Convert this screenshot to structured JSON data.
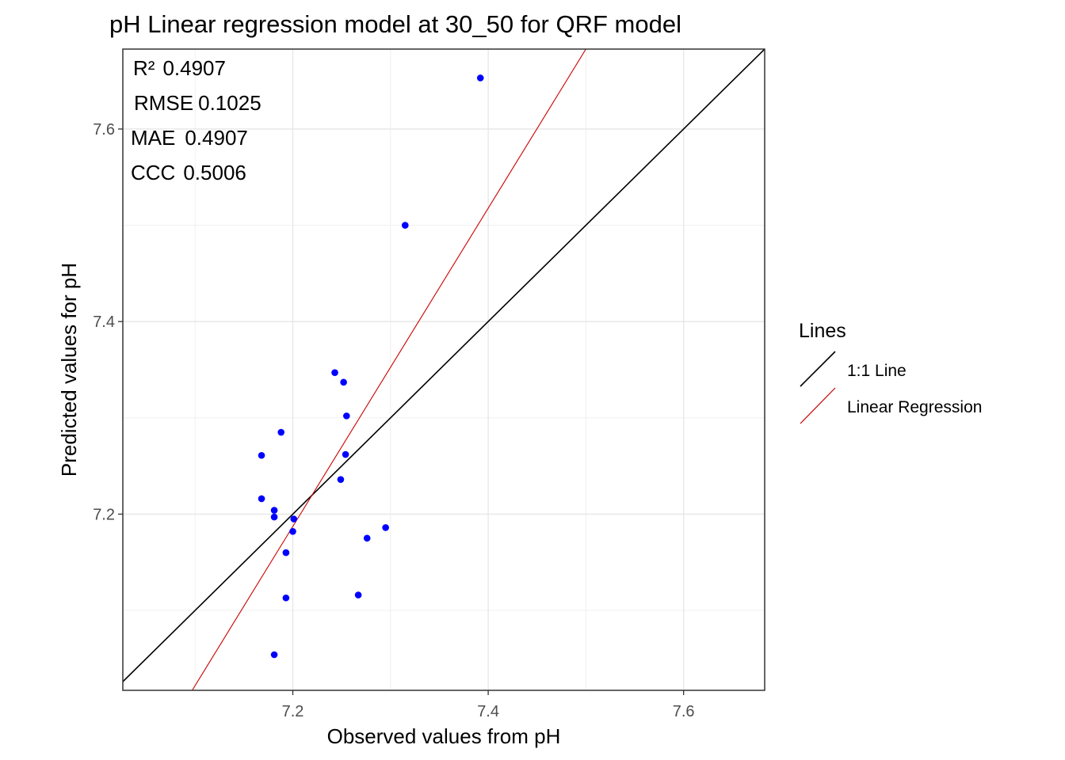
{
  "chart_data": {
    "type": "scatter",
    "title": "pH  Linear regression model at  30_50  for  QRF  model",
    "xlabel": "Observed values from pH",
    "ylabel": "Predicted values for pH",
    "xlim": [
      7.026,
      7.683
    ],
    "ylim": [
      7.017,
      7.683
    ],
    "x_ticks": [
      7.2,
      7.4,
      7.6
    ],
    "y_ticks": [
      7.2,
      7.4,
      7.6
    ],
    "x_tick_labels": [
      "7.2",
      "7.4",
      "7.6"
    ],
    "y_tick_labels": [
      "7.2",
      "7.4",
      "7.6"
    ],
    "grid": true,
    "metrics": [
      {
        "label": "R²",
        "value": "0.4907"
      },
      {
        "label": "RMSE",
        "value": "0.1025"
      },
      {
        "label": "MAE",
        "value": "0.4907"
      },
      {
        "label": "CCC",
        "value": "0.5006"
      }
    ],
    "points": {
      "color": "#0000ff",
      "x": [
        7.392,
        7.315,
        7.243,
        7.252,
        7.255,
        7.254,
        7.249,
        7.188,
        7.168,
        7.168,
        7.181,
        7.181,
        7.201,
        7.2,
        7.193,
        7.193,
        7.181,
        7.267,
        7.276,
        7.295
      ],
      "y": [
        7.653,
        7.5,
        7.347,
        7.337,
        7.302,
        7.262,
        7.236,
        7.285,
        7.261,
        7.216,
        7.204,
        7.197,
        7.195,
        7.182,
        7.16,
        7.113,
        7.054,
        7.116,
        7.175,
        7.186
      ]
    },
    "lines": [
      {
        "name": "1:1 Line",
        "color": "#000000",
        "x": [
          7.026,
          7.683
        ],
        "y": [
          7.026,
          7.683
        ]
      },
      {
        "name": "Linear Regression",
        "color": "#cc0000",
        "x": [
          7.097,
          7.5
        ],
        "y": [
          7.017,
          7.683
        ]
      }
    ],
    "legend": {
      "title": "Lines",
      "placement": "right"
    }
  }
}
